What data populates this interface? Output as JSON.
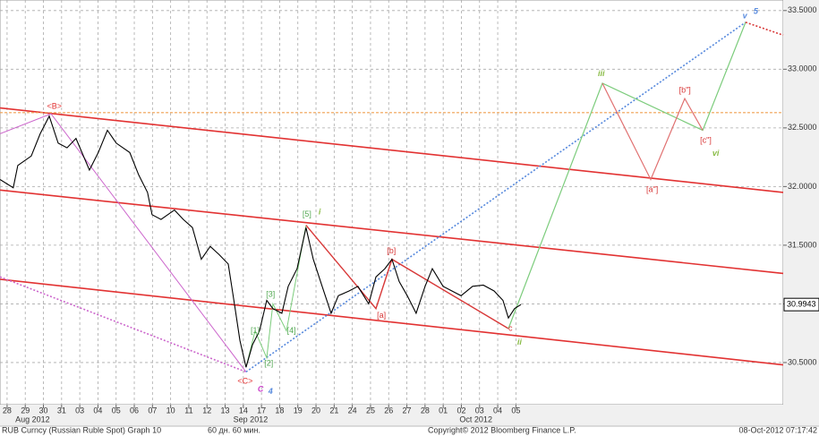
{
  "chart_data": {
    "type": "line",
    "categories": [
      "28",
      "29",
      "30",
      "31",
      "03",
      "04",
      "05",
      "06",
      "07",
      "10",
      "11",
      "12",
      "13",
      "14",
      "17",
      "18",
      "19",
      "20",
      "21",
      "24",
      "25",
      "26",
      "27",
      "28",
      "01",
      "02",
      "03",
      "04",
      "05"
    ],
    "month_labels": [
      {
        "value": 1.4,
        "label": "Aug 2012"
      },
      {
        "value": 13.4,
        "label": "Sep 2012"
      },
      {
        "value": 25.8,
        "label": "Oct 2012"
      }
    ],
    "xlim": [
      -0.39,
      42.71
    ],
    "ylim": [
      30.08,
      33.59
    ],
    "yticks": [
      {
        "value": 30.5,
        "label": "30.5000"
      },
      {
        "value": 31,
        "label": "31.0000"
      },
      {
        "value": 31.5,
        "label": "31.5000"
      },
      {
        "value": 32,
        "label": "32.0000"
      },
      {
        "value": 32.5,
        "label": "32.5000"
      },
      {
        "value": 33,
        "label": "33.0000"
      },
      {
        "value": 33.5,
        "label": "33.5000"
      }
    ],
    "grid": true,
    "last_price": 30.9943,
    "series": [
      {
        "color": "#000000",
        "x": [
          -0.39,
          0.34,
          0.59,
          1.33,
          1.82,
          2.32,
          2.81,
          3.3,
          3.79,
          4.53,
          5.02,
          5.52,
          6.01,
          6.75,
          7.24,
          7.73,
          7.98,
          8.47,
          9.21,
          9.7,
          10.2,
          10.69,
          11.18,
          11.67,
          12.17,
          12.51,
          12.81,
          13.15,
          13.5,
          13.89,
          14.29,
          14.63,
          15.12,
          15.47,
          15.96,
          16.45,
          16.85,
          17.34,
          17.83,
          18.23,
          18.82,
          19.31,
          19.9,
          20.3,
          20.79,
          21.18,
          21.58,
          22.02,
          22.51,
          23.0,
          23.4,
          23.99,
          24.48,
          24.98,
          25.62,
          26.21,
          26.8,
          27.29,
          27.59,
          27.93,
          28.28
        ],
        "values": [
          32.06,
          31.99,
          32.18,
          32.26,
          32.45,
          32.6,
          32.37,
          32.33,
          32.41,
          32.14,
          32.29,
          32.48,
          32.37,
          32.29,
          32.1,
          31.95,
          31.76,
          31.72,
          31.8,
          31.72,
          31.65,
          31.38,
          31.49,
          31.42,
          31.34,
          31.0,
          30.69,
          30.46,
          30.65,
          30.77,
          31.03,
          30.96,
          30.92,
          31.15,
          31.3,
          31.65,
          31.38,
          31.15,
          30.92,
          31.07,
          31.11,
          31.15,
          31.0,
          31.23,
          31.3,
          31.38,
          31.19,
          31.07,
          30.92,
          31.15,
          31.3,
          31.15,
          31.11,
          31.07,
          31.15,
          31.16,
          31.11,
          31.03,
          30.88,
          30.96,
          30.9943
        ]
      }
    ],
    "overlays": [
      {
        "color": "#e23232",
        "dash": "none",
        "width": 1.6,
        "x": [
          -0.39,
          42.71
        ],
        "y": [
          32.67,
          31.95
        ]
      },
      {
        "color": "#e23232",
        "dash": "none",
        "width": 1.6,
        "x": [
          -0.39,
          42.71
        ],
        "y": [
          31.97,
          31.26
        ]
      },
      {
        "color": "#e23232",
        "dash": "none",
        "width": 1.6,
        "x": [
          -0.39,
          42.71
        ],
        "y": [
          31.21,
          30.48
        ]
      },
      {
        "color": "#f0a050",
        "dash": "3,2",
        "width": 1.2,
        "x": [
          -0.39,
          42.71
        ],
        "y": [
          32.63,
          32.63
        ]
      },
      {
        "color": "#cc66cc",
        "dash": "none",
        "width": 1,
        "x": [
          -0.39,
          2.42,
          13.15
        ],
        "y": [
          32.45,
          32.62,
          30.42
        ]
      },
      {
        "color": "#cc66cc",
        "dash": "2,2",
        "width": 1.6,
        "x": [
          -0.39,
          13.15
        ],
        "y": [
          31.23,
          30.42
        ]
      },
      {
        "color": "#5588dd",
        "dash": "2,2",
        "width": 1.6,
        "x": [
          13.15,
          40.64
        ],
        "y": [
          30.42,
          33.4
        ]
      },
      {
        "color": "#7ccc7c",
        "dash": "none",
        "width": 1,
        "x": [
          13.15,
          13.65,
          14.29,
          14.63,
          15.37,
          16.45
        ],
        "y": [
          30.46,
          30.77,
          30.54,
          31.0,
          30.77,
          31.67
        ]
      },
      {
        "color": "#d83838",
        "dash": "none",
        "width": 1.4,
        "x": [
          16.45,
          20.3,
          21.18,
          27.59
        ],
        "y": [
          31.67,
          30.96,
          31.38,
          30.79
        ]
      },
      {
        "color": "#7ccc7c",
        "dash": "none",
        "width": 1.2,
        "x": [
          27.59,
          32.76,
          38.28,
          40.64
        ],
        "y": [
          30.79,
          32.88,
          32.48,
          33.4
        ]
      },
      {
        "color": "#e07070",
        "dash": "none",
        "width": 1.2,
        "x": [
          32.76,
          35.42,
          37.29,
          38.28
        ],
        "y": [
          32.88,
          32.06,
          32.75,
          32.48
        ]
      },
      {
        "color": "#d83838",
        "dash": "2,2",
        "width": 1.6,
        "x": [
          40.64,
          42.71
        ],
        "y": [
          33.4,
          33.29
        ]
      }
    ],
    "annotations": [
      {
        "text": "<B>",
        "x": 2.6,
        "y": 32.68,
        "color": "#e23232",
        "size": 12
      },
      {
        "text": "<C>",
        "x": 13.1,
        "y": 30.34,
        "color": "#e23232",
        "size": 12
      },
      {
        "text": "C",
        "x": 13.95,
        "y": 30.27,
        "color": "#cc44cc",
        "size": 20
      },
      {
        "text": "4",
        "x": 14.5,
        "y": 30.25,
        "color": "#5588dd",
        "size": 18
      },
      {
        "text": "[1]",
        "x": 13.65,
        "y": 30.77,
        "color": "#55aa55",
        "size": 12
      },
      {
        "text": "[2]",
        "x": 14.4,
        "y": 30.49,
        "color": "#55aa55",
        "size": 12
      },
      {
        "text": "[3]",
        "x": 14.5,
        "y": 31.08,
        "color": "#55aa55",
        "size": 12
      },
      {
        "text": "[4]",
        "x": 15.65,
        "y": 30.77,
        "color": "#55aa55",
        "size": 12
      },
      {
        "text": "[5]",
        "x": 16.5,
        "y": 31.76,
        "color": "#55aa55",
        "size": 12
      },
      {
        "text": "i",
        "x": 17.2,
        "y": 31.78,
        "color": "#88bb44",
        "size": 16
      },
      {
        "text": "[a]",
        "x": 20.6,
        "y": 30.9,
        "color": "#d83838",
        "size": 12
      },
      {
        "text": "[b]",
        "x": 21.15,
        "y": 31.45,
        "color": "#d83838",
        "size": 12
      },
      {
        "text": "c",
        "x": 27.7,
        "y": 30.79,
        "color": "#d83838",
        "size": 12
      },
      {
        "text": "ii",
        "x": 28.2,
        "y": 30.67,
        "color": "#88bb44",
        "size": 16
      },
      {
        "text": "iii",
        "x": 32.7,
        "y": 32.96,
        "color": "#88bb44",
        "size": 16
      },
      {
        "text": "[a\"]",
        "x": 35.5,
        "y": 31.97,
        "color": "#d83838",
        "size": 12
      },
      {
        "text": "[b\"]",
        "x": 37.3,
        "y": 32.82,
        "color": "#d83838",
        "size": 12
      },
      {
        "text": "[c\"]",
        "x": 38.45,
        "y": 32.39,
        "color": "#d83838",
        "size": 12
      },
      {
        "text": "vi",
        "x": 39.0,
        "y": 32.28,
        "color": "#88bb44",
        "size": 16
      },
      {
        "text": "v",
        "x": 40.6,
        "y": 33.45,
        "color": "#5588dd",
        "size": 16
      },
      {
        "text": "5",
        "x": 41.2,
        "y": 33.49,
        "color": "#5588dd",
        "size": 18
      }
    ],
    "footer": {
      "ticker": "RUB Curncy (Russian Ruble Spot) Graph 10",
      "period": "60 дн. 60 мин.",
      "copyright": "Copyright© 2012 Bloomberg Finance L.P.",
      "timestamp": "08-Oct-2012 07:17:42"
    }
  }
}
